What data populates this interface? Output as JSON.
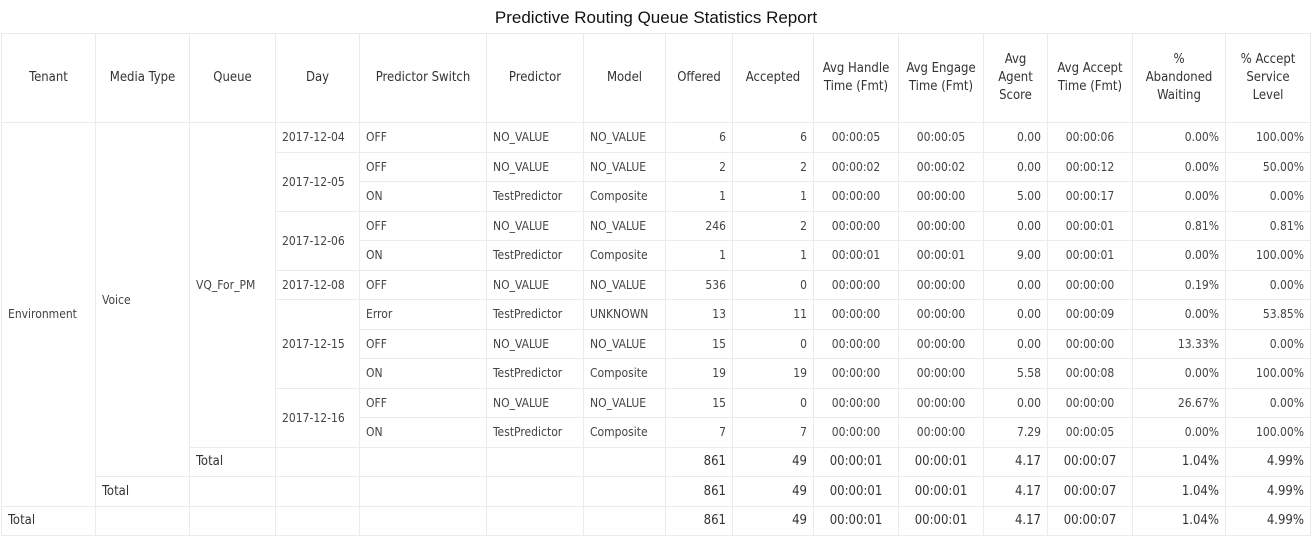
{
  "title": "Predictive Routing Queue Statistics Report",
  "columns": [
    "Tenant",
    "Media Type",
    "Queue",
    "Day",
    "Predictor Switch",
    "Predictor",
    "Model",
    "Offered",
    "Accepted",
    "Avg Handle Time (Fmt)",
    "Avg Engage Time (Fmt)",
    "Avg Agent Score",
    "Avg Accept Time (Fmt)",
    "% Abandoned Waiting",
    "% Accept Service Level"
  ],
  "tenant": "Environment",
  "media_type": "Voice",
  "queue": "VQ_For_PM",
  "rows": [
    {
      "day": "2017-12-04",
      "switch": "OFF",
      "predictor": "NO_VALUE",
      "model": "NO_VALUE",
      "offered": "6",
      "accepted": "6",
      "aht": "00:00:05",
      "aet": "00:00:05",
      "score": "0.00",
      "aat": "00:00:06",
      "aband": "0.00%",
      "asl": "100.00%"
    },
    {
      "day": "2017-12-05",
      "switch": "OFF",
      "predictor": "NO_VALUE",
      "model": "NO_VALUE",
      "offered": "2",
      "accepted": "2",
      "aht": "00:00:02",
      "aet": "00:00:02",
      "score": "0.00",
      "aat": "00:00:12",
      "aband": "0.00%",
      "asl": "50.00%"
    },
    {
      "day": "2017-12-05",
      "switch": "ON",
      "predictor": "TestPredictor",
      "model": "Composite",
      "offered": "1",
      "accepted": "1",
      "aht": "00:00:00",
      "aet": "00:00:00",
      "score": "5.00",
      "aat": "00:00:17",
      "aband": "0.00%",
      "asl": "0.00%"
    },
    {
      "day": "2017-12-06",
      "switch": "OFF",
      "predictor": "NO_VALUE",
      "model": "NO_VALUE",
      "offered": "246",
      "accepted": "2",
      "aht": "00:00:00",
      "aet": "00:00:00",
      "score": "0.00",
      "aat": "00:00:01",
      "aband": "0.81%",
      "asl": "0.81%"
    },
    {
      "day": "2017-12-06",
      "switch": "ON",
      "predictor": "TestPredictor",
      "model": "Composite",
      "offered": "1",
      "accepted": "1",
      "aht": "00:00:01",
      "aet": "00:00:01",
      "score": "9.00",
      "aat": "00:00:01",
      "aband": "0.00%",
      "asl": "100.00%"
    },
    {
      "day": "2017-12-08",
      "switch": "OFF",
      "predictor": "NO_VALUE",
      "model": "NO_VALUE",
      "offered": "536",
      "accepted": "0",
      "aht": "00:00:00",
      "aet": "00:00:00",
      "score": "0.00",
      "aat": "00:00:00",
      "aband": "0.19%",
      "asl": "0.00%"
    },
    {
      "day": "2017-12-15",
      "switch": "Error",
      "predictor": "TestPredictor",
      "model": "UNKNOWN",
      "offered": "13",
      "accepted": "11",
      "aht": "00:00:00",
      "aet": "00:00:00",
      "score": "0.00",
      "aat": "00:00:09",
      "aband": "0.00%",
      "asl": "53.85%"
    },
    {
      "day": "2017-12-15",
      "switch": "OFF",
      "predictor": "NO_VALUE",
      "model": "NO_VALUE",
      "offered": "15",
      "accepted": "0",
      "aht": "00:00:00",
      "aet": "00:00:00",
      "score": "0.00",
      "aat": "00:00:00",
      "aband": "13.33%",
      "asl": "0.00%"
    },
    {
      "day": "2017-12-15",
      "switch": "ON",
      "predictor": "TestPredictor",
      "model": "Composite",
      "offered": "19",
      "accepted": "19",
      "aht": "00:00:00",
      "aet": "00:00:00",
      "score": "5.58",
      "aat": "00:00:08",
      "aband": "0.00%",
      "asl": "100.00%"
    },
    {
      "day": "2017-12-16",
      "switch": "OFF",
      "predictor": "NO_VALUE",
      "model": "NO_VALUE",
      "offered": "15",
      "accepted": "0",
      "aht": "00:00:00",
      "aet": "00:00:00",
      "score": "0.00",
      "aat": "00:00:00",
      "aband": "26.67%",
      "asl": "0.00%"
    },
    {
      "day": "2017-12-16",
      "switch": "ON",
      "predictor": "TestPredictor",
      "model": "Composite",
      "offered": "7",
      "accepted": "7",
      "aht": "00:00:00",
      "aet": "00:00:00",
      "score": "7.29",
      "aat": "00:00:05",
      "aband": "0.00%",
      "asl": "100.00%"
    }
  ],
  "totals": [
    {
      "level": "queue",
      "label": "Total",
      "offered": "861",
      "accepted": "49",
      "aht": "00:00:01",
      "aet": "00:00:01",
      "score": "4.17",
      "aat": "00:00:07",
      "aband": "1.04%",
      "asl": "4.99%"
    },
    {
      "level": "media",
      "label": "Total",
      "offered": "861",
      "accepted": "49",
      "aht": "00:00:01",
      "aet": "00:00:01",
      "score": "4.17",
      "aat": "00:00:07",
      "aband": "1.04%",
      "asl": "4.99%"
    },
    {
      "level": "tenant",
      "label": "Total",
      "offered": "861",
      "accepted": "49",
      "aht": "00:00:01",
      "aet": "00:00:01",
      "score": "4.17",
      "aat": "00:00:07",
      "aband": "1.04%",
      "asl": "4.99%"
    }
  ]
}
